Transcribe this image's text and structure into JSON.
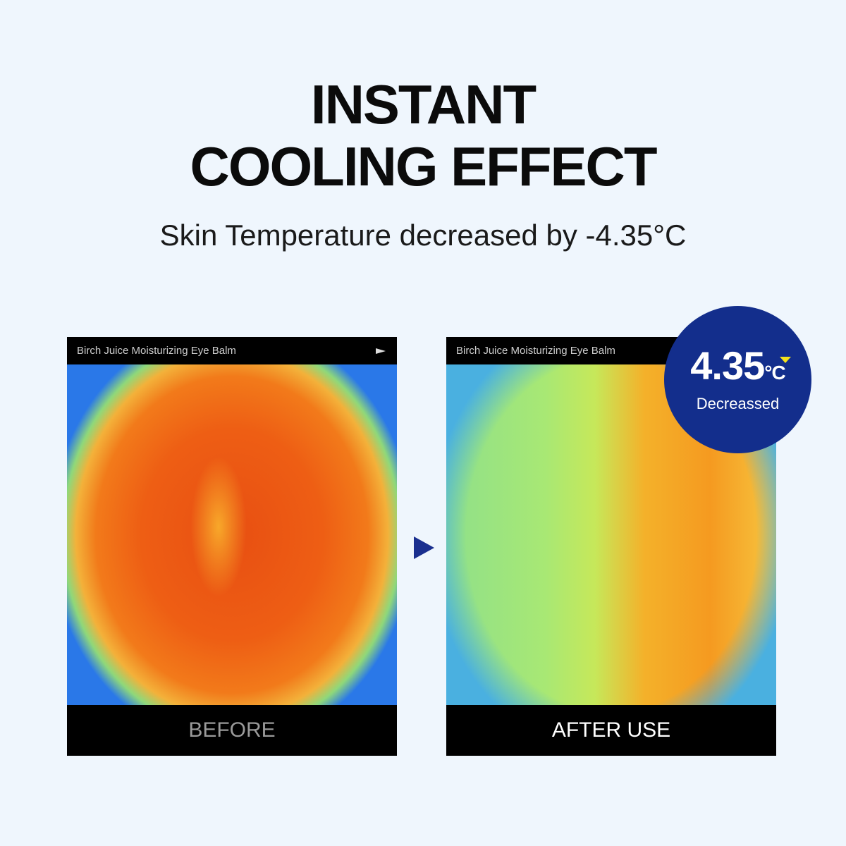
{
  "headline": {
    "line1": "INSTANT",
    "line2": "COOLING EFFECT"
  },
  "subtitle": "Skin Temperature decreased by -4.35°C",
  "panels": [
    {
      "header": "Birch Juice Moisturizing Eye Balm",
      "caption": "BEFORE",
      "icon": "play-icon"
    },
    {
      "header": "Birch Juice Moisturizing Eye Balm",
      "caption": "AFTER USE"
    }
  ],
  "badge": {
    "value": "4.35",
    "unit": "°C",
    "label": "Decreassed",
    "color": "#132e8c",
    "indicator_color": "#f5e31a"
  },
  "colors": {
    "background": "#eff6fd",
    "arrow": "#1a2f8f"
  }
}
